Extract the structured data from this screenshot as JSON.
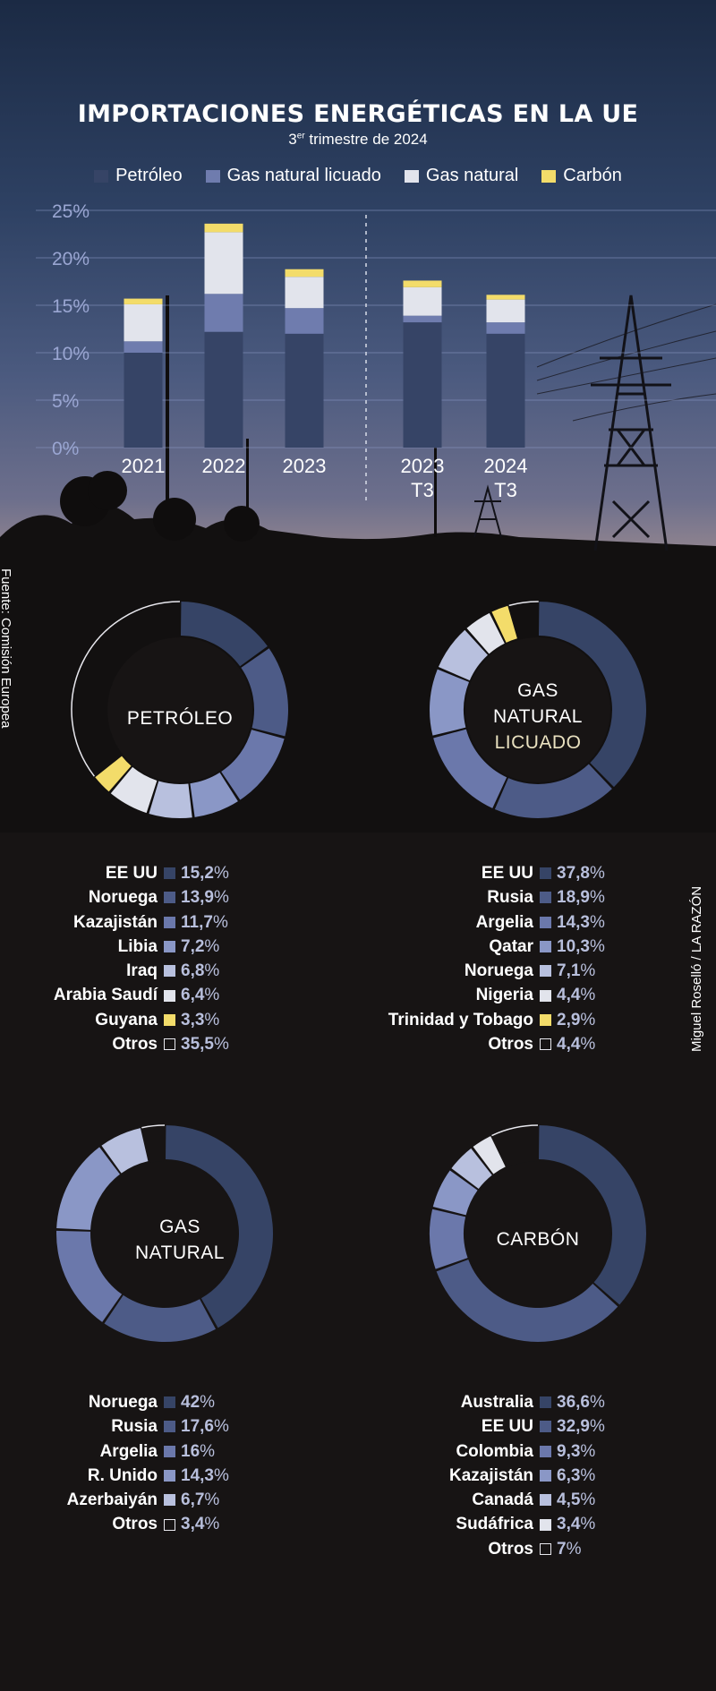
{
  "colors": {
    "petroleo": "#364466",
    "gnl": "#6f7cae",
    "gas": "#e2e4ec",
    "carbon": "#f3dc6a",
    "ring": [
      [
        "#364466",
        "#4d5b87",
        "#6b78ab",
        "#8a97c6",
        "#b8c0de",
        "#e2e4ec",
        "#ddd4b5",
        "#f3dc6a"
      ]
    ]
  },
  "header": {
    "title": "IMPORTACIONES ENERGÉTICAS EN LA UE",
    "subtitle_main": "3",
    "subtitle_sup": "er",
    "subtitle_rest": " trimestre de 2024"
  },
  "legend": [
    "Petróleo",
    "Gas natural licuado",
    "Gas natural",
    "Carbón"
  ],
  "chart_data": [
    {
      "type": "bar",
      "stacked": true,
      "categories": [
        [
          "2021"
        ],
        [
          "2022"
        ],
        [
          "2023"
        ],
        [
          "2023",
          "T3"
        ],
        [
          "2024",
          "T3"
        ]
      ],
      "series": [
        {
          "name": "Petróleo",
          "values": [
            10,
            12.2,
            12.0,
            13.2,
            12.0
          ]
        },
        {
          "name": "Gas natural licuado",
          "values": [
            1.2,
            4.0,
            2.7,
            0.7,
            1.2
          ]
        },
        {
          "name": "Gas natural",
          "values": [
            3.9,
            6.5,
            3.3,
            3.0,
            2.4
          ]
        },
        {
          "name": "Carbón",
          "values": [
            0.6,
            0.9,
            0.8,
            0.7,
            0.5
          ]
        }
      ],
      "yticks": [
        "0%",
        "5%",
        "10%",
        "15%",
        "20%",
        "25%"
      ],
      "ylim": [
        0,
        25
      ]
    },
    {
      "type": "pie",
      "title": "PETRÓLEO",
      "labels": [
        "EE UU",
        "Noruega",
        "Kazajistán",
        "Libia",
        "Iraq",
        "Arabia Saudí",
        "Guyana",
        "Otros"
      ],
      "values": [
        "15,2",
        "13,9",
        "11,7",
        "7,2",
        "6,8",
        "6,4",
        "3,3",
        "35,5"
      ]
    },
    {
      "type": "pie",
      "title": "GAS NATURAL LICUADO",
      "labels": [
        "EE UU",
        "Rusia",
        "Argelia",
        "Qatar",
        "Noruega",
        "Nigeria",
        "Trinidad y Tobago",
        "Otros"
      ],
      "values": [
        "37,8",
        "18,9",
        "14,3",
        "10,3",
        "7,1",
        "4,4",
        "2,9",
        "4,4"
      ]
    },
    {
      "type": "pie",
      "title": "GAS NATURAL",
      "labels": [
        "Noruega",
        "Rusia",
        "Argelia",
        "R. Unido",
        "Azerbaiyán",
        "Otros"
      ],
      "values": [
        "42",
        "17,6",
        "16",
        "14,3",
        "6,7",
        "3,4"
      ]
    },
    {
      "type": "pie",
      "title": "CARBÓN",
      "labels": [
        "Australia",
        "EE UU",
        "Colombia",
        "Kazajistán",
        "Canadá",
        "Sudáfrica",
        "Otros"
      ],
      "values": [
        "36,6",
        "32,9",
        "9,3",
        "6,3",
        "4,5",
        "3,4",
        "7"
      ]
    }
  ],
  "donut_labels": {
    "petroleo": "PETRÓLEO",
    "gnl_1": "GAS",
    "gnl_2": "NATURAL",
    "gnl_3": "LICUADO",
    "gas_1": "GAS",
    "gas_2": "NATURAL",
    "carbon": "CARBÓN"
  },
  "source": "Fuente: Comisión Europea",
  "credit": "Miguel Roselló / LA RAZÓN"
}
